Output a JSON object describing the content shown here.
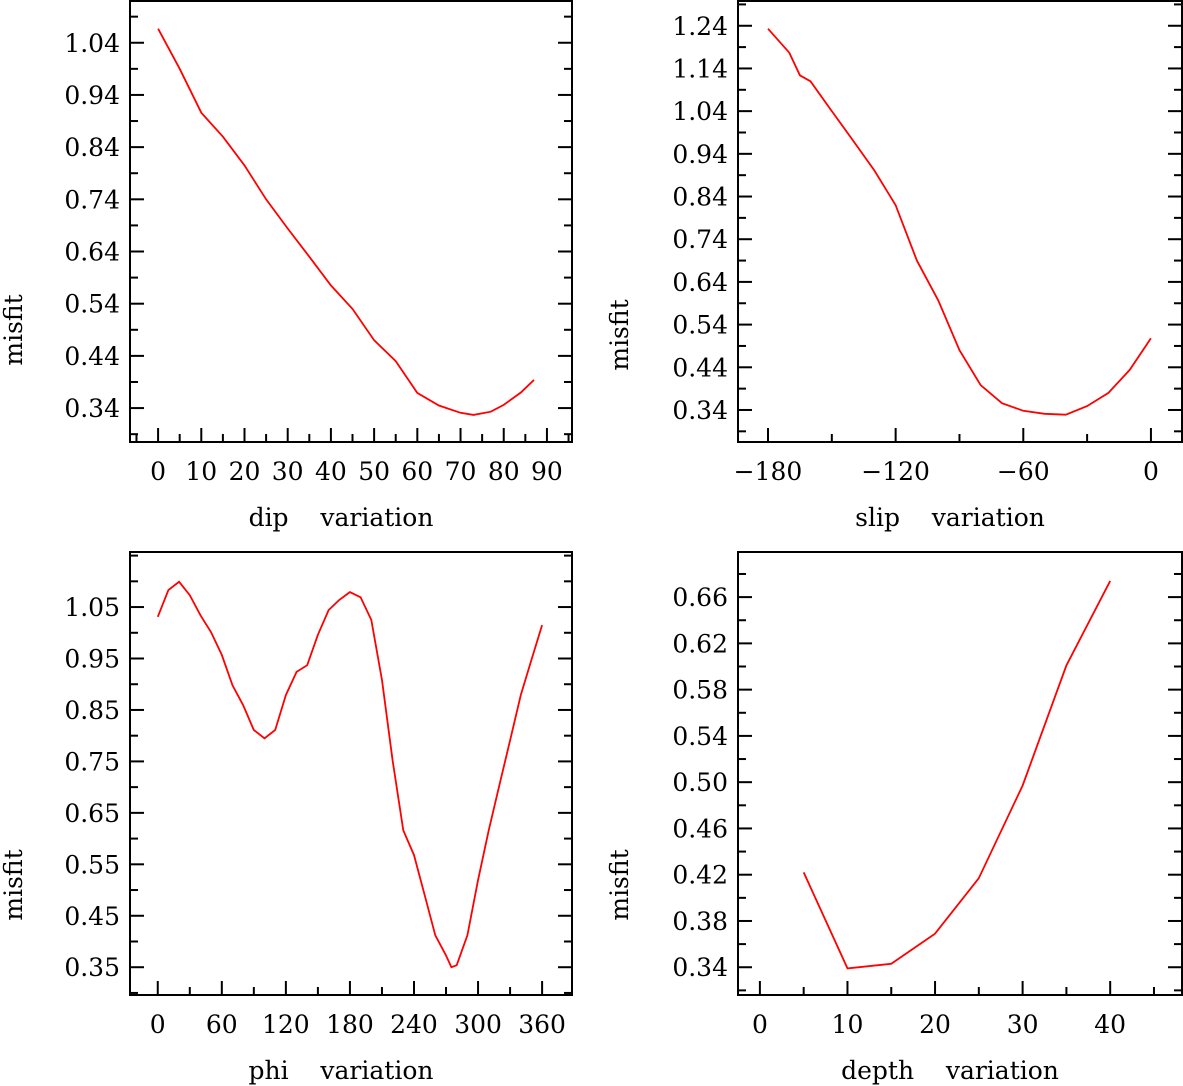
{
  "colors": {
    "line": "#ff0000",
    "axis": "#000000"
  },
  "chart_data": [
    {
      "type": "line",
      "title": "",
      "xlabel": "dip    variation",
      "ylabel": "misfit",
      "xlim": [
        -6.5,
        95.8
      ],
      "ylim": [
        0.275,
        1.12
      ],
      "x_ticks": [
        0,
        10,
        20,
        30,
        40,
        50,
        60,
        70,
        80,
        90
      ],
      "x_tick_labels": [
        "0",
        "10",
        "20",
        "30",
        "40",
        "50",
        "60",
        "70",
        "80",
        "90"
      ],
      "x_minor_step": 5,
      "y_ticks": [
        0.34,
        0.44,
        0.54,
        0.64,
        0.74,
        0.84,
        0.94,
        1.04
      ],
      "y_tick_labels": [
        "0.34",
        "0.44",
        "0.54",
        "0.64",
        "0.74",
        "0.84",
        "0.94",
        "1.04"
      ],
      "y_minor_step": 0.05,
      "grid": false,
      "series": [
        {
          "name": "misfit",
          "x": [
            0,
            5,
            10,
            15,
            20,
            25,
            30,
            35,
            40,
            45,
            50,
            55,
            60,
            65,
            70,
            73,
            77,
            80,
            84,
            87
          ],
          "y": [
            1.067,
            0.99,
            0.906,
            0.86,
            0.805,
            0.74,
            0.684,
            0.63,
            0.575,
            0.53,
            0.47,
            0.43,
            0.369,
            0.345,
            0.331,
            0.327,
            0.333,
            0.346,
            0.37,
            0.394
          ]
        }
      ]
    },
    {
      "type": "line",
      "title": "",
      "xlabel": "slip    variation",
      "ylabel": "misfit",
      "xlim": [
        -194.1,
        14.6
      ],
      "ylim": [
        0.265,
        1.298
      ],
      "x_ticks": [
        -180,
        -120,
        -60,
        0
      ],
      "x_tick_labels": [
        "−180",
        "−120",
        "−60",
        "0"
      ],
      "x_minor_step": 30,
      "y_ticks": [
        0.34,
        0.44,
        0.54,
        0.64,
        0.74,
        0.84,
        0.94,
        1.04,
        1.14,
        1.24
      ],
      "y_tick_labels": [
        "0.34",
        "0.44",
        "0.54",
        "0.64",
        "0.74",
        "0.84",
        "0.94",
        "1.04",
        "1.14",
        "1.24"
      ],
      "y_minor_step": 0.05,
      "grid": false,
      "series": [
        {
          "name": "misfit",
          "x": [
            -180,
            -170,
            -165,
            -160,
            -150,
            -140,
            -130,
            -120,
            -110,
            -100,
            -90,
            -80,
            -70,
            -60,
            -50,
            -40,
            -30,
            -20,
            -10,
            0
          ],
          "y": [
            1.233,
            1.177,
            1.124,
            1.11,
            1.04,
            0.971,
            0.901,
            0.82,
            0.69,
            0.597,
            0.48,
            0.398,
            0.356,
            0.338,
            0.331,
            0.329,
            0.349,
            0.38,
            0.434,
            0.508
          ]
        }
      ]
    },
    {
      "type": "line",
      "title": "",
      "xlabel": "phi    variation",
      "ylabel": "misfit",
      "xlim": [
        -26,
        388
      ],
      "ylim": [
        0.296,
        1.157
      ],
      "x_ticks": [
        0,
        60,
        120,
        180,
        240,
        300,
        360
      ],
      "x_tick_labels": [
        "0",
        "60",
        "120",
        "180",
        "240",
        "300",
        "360"
      ],
      "x_minor_step": 30,
      "y_ticks": [
        0.35,
        0.45,
        0.55,
        0.65,
        0.75,
        0.85,
        0.95,
        1.05
      ],
      "y_tick_labels": [
        "0.35",
        "0.45",
        "0.55",
        "0.65",
        "0.75",
        "0.85",
        "0.95",
        "1.05"
      ],
      "y_minor_step": 0.05,
      "grid": false,
      "series": [
        {
          "name": "misfit",
          "x": [
            0,
            10,
            20,
            30,
            40,
            50,
            60,
            70,
            80,
            90,
            100,
            110,
            120,
            130,
            140,
            150,
            160,
            170,
            180,
            190,
            200,
            210,
            220,
            230,
            240,
            250,
            260,
            270,
            275,
            280,
            290,
            300,
            310,
            320,
            330,
            340,
            350,
            360
          ],
          "y": [
            1.031,
            1.083,
            1.099,
            1.073,
            1.034,
            1.001,
            0.957,
            0.898,
            0.859,
            0.811,
            0.795,
            0.811,
            0.879,
            0.924,
            0.937,
            0.996,
            1.044,
            1.064,
            1.079,
            1.069,
            1.025,
            0.908,
            0.752,
            0.616,
            0.568,
            0.49,
            0.412,
            0.373,
            0.35,
            0.354,
            0.412,
            0.519,
            0.616,
            0.704,
            0.791,
            0.879,
            0.947,
            1.015
          ]
        }
      ]
    },
    {
      "type": "line",
      "title": "",
      "xlabel": "depth    variation",
      "ylabel": "misfit",
      "xlim": [
        -2.5,
        48.2
      ],
      "ylim": [
        0.316,
        0.699
      ],
      "x_ticks": [
        0,
        10,
        20,
        30,
        40
      ],
      "x_tick_labels": [
        "0",
        "10",
        "20",
        "30",
        "40"
      ],
      "x_minor_step": 5,
      "y_ticks": [
        0.34,
        0.38,
        0.42,
        0.46,
        0.5,
        0.54,
        0.58,
        0.62,
        0.66
      ],
      "y_tick_labels": [
        "0.34",
        "0.38",
        "0.42",
        "0.46",
        "0.50",
        "0.54",
        "0.58",
        "0.62",
        "0.66"
      ],
      "y_minor_step": 0.02,
      "grid": false,
      "series": [
        {
          "name": "misfit",
          "x": [
            5,
            10,
            15,
            20,
            25,
            30,
            35,
            40
          ],
          "y": [
            0.422,
            0.339,
            0.343,
            0.369,
            0.417,
            0.497,
            0.601,
            0.674
          ]
        }
      ]
    }
  ]
}
